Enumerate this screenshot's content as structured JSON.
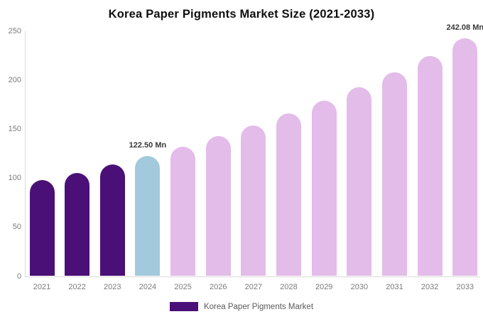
{
  "chart_data": {
    "type": "bar",
    "title": "Korea Paper Pigments Market Size (2021-2033)",
    "categories": [
      "2021",
      "2022",
      "2023",
      "2024",
      "2025",
      "2026",
      "2027",
      "2028",
      "2029",
      "2030",
      "2031",
      "2032",
      "2033"
    ],
    "values": [
      97.6,
      105.3,
      113.6,
      122.5,
      132.1,
      142.5,
      153.7,
      165.8,
      178.8,
      192.9,
      208.0,
      224.4,
      242.08
    ],
    "unit": "Mn",
    "ylim": [
      0,
      250
    ],
    "yticks": [
      0,
      50,
      100,
      150,
      200,
      250
    ],
    "grid": false,
    "bar_colors": [
      "#4B1077",
      "#4B1077",
      "#4B1077",
      "#A2C9DC",
      "#E3BCE9",
      "#E3BCE9",
      "#E3BCE9",
      "#E3BCE9",
      "#E3BCE9",
      "#E3BCE9",
      "#E3BCE9",
      "#E3BCE9",
      "#E3BCE9"
    ],
    "annotations": [
      {
        "index": 3,
        "category": "2024",
        "text": "122.50 Mn"
      },
      {
        "index": 12,
        "category": "2033",
        "text": "242.08 Mn"
      }
    ],
    "legend": {
      "label": "Korea Paper Pigments Market",
      "position": "bottom",
      "swatch_color": "#4B1077"
    },
    "colors": {
      "axis_line": "#D9D9D9",
      "tick_label": "#7B7B7B",
      "annotation_text": "#383838",
      "legend_text": "#5A5A5A",
      "title_text": "#0F0F0F",
      "background": "#FFFFFF"
    }
  }
}
